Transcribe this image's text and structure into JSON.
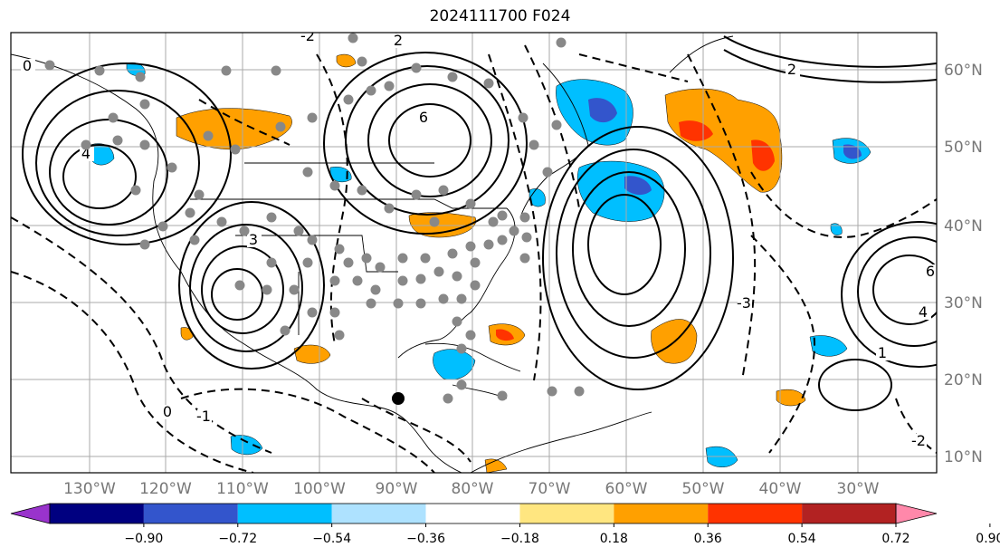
{
  "title": "2024111700 F024",
  "longitude_labels": [
    "130°W",
    "120°W",
    "110°W",
    "100°W",
    "90°W",
    "80°W",
    "70°W",
    "60°W",
    "50°W",
    "40°W",
    "30°W"
  ],
  "latitude_labels": [
    "60°N",
    "50°N",
    "40°N",
    "30°N",
    "20°N",
    "10°N"
  ],
  "colorbar": {
    "colors": [
      "#9933cc",
      "#000080",
      "#3355cc",
      "#00bfff",
      "#aee2ff",
      "#ffffff",
      "#ffe680",
      "#ffa000",
      "#ff3300",
      "#b22222",
      "#ff88aa"
    ],
    "tick_labels": [
      "−0.90",
      "−0.72",
      "−0.54",
      "−0.36",
      "−0.18",
      "0.18",
      "0.36",
      "0.54",
      "0.72",
      "0.90"
    ]
  },
  "contour_labels": [
    "0",
    "2",
    "3",
    "6",
    "-2",
    "-1",
    "4",
    "2",
    "-3",
    "1",
    "-2",
    "0",
    "6",
    "4"
  ],
  "colors": {
    "contour": "#000000",
    "grid": "#aaaaaa",
    "station_marker": "#888888",
    "positive_fill": "#ffa000",
    "negative_fill": "#00bfff"
  }
}
